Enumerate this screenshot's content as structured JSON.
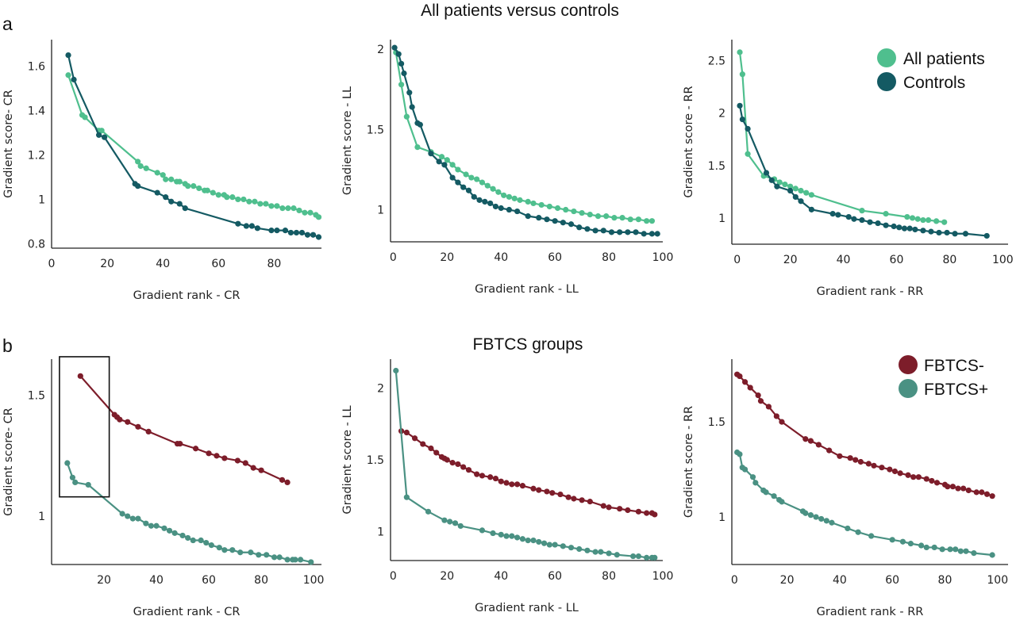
{
  "panels": {
    "a": {
      "label": "a",
      "title": "All patients versus controls"
    },
    "b": {
      "label": "b",
      "title": "FBTCS groups"
    }
  },
  "legends": {
    "a": [
      {
        "name": "All patients",
        "color": "#4fbf8e"
      },
      {
        "name": "Controls",
        "color": "#145a63"
      }
    ],
    "b": [
      {
        "name": "FBTCS-",
        "color": "#7d1d2a"
      },
      {
        "name": "FBTCS+",
        "color": "#4a9183"
      }
    ]
  },
  "chart_data": [
    {
      "type": "line",
      "panel": "a",
      "xlabel": "Gradient rank - CR",
      "ylabel": "Gradient score- CR",
      "xlim": [
        0,
        97
      ],
      "ylim": [
        0.78,
        1.72
      ],
      "xticks": [
        0,
        20,
        40,
        60,
        80
      ],
      "yticks": [
        0.8,
        1,
        1.2,
        1.4,
        1.6
      ],
      "yticklabels": [
        "0.8",
        "1",
        "1.2",
        "1.4",
        "1.6"
      ],
      "series": [
        {
          "name": "All patients",
          "color": "#4fbf8e",
          "x": [
            6,
            11,
            12,
            17,
            18,
            31,
            32,
            34,
            38,
            40,
            41,
            43,
            45,
            46,
            48,
            49,
            51,
            53,
            55,
            56,
            58,
            60,
            62,
            63,
            65,
            67,
            69,
            71,
            73,
            75,
            77,
            79,
            81,
            83,
            85,
            87,
            89,
            91,
            93,
            95,
            96
          ],
          "y": [
            1.56,
            1.38,
            1.37,
            1.31,
            1.31,
            1.17,
            1.15,
            1.14,
            1.12,
            1.11,
            1.09,
            1.09,
            1.08,
            1.08,
            1.07,
            1.06,
            1.06,
            1.05,
            1.04,
            1.04,
            1.03,
            1.02,
            1.02,
            1.01,
            1.01,
            1.0,
            1.0,
            0.99,
            0.99,
            0.98,
            0.98,
            0.97,
            0.97,
            0.96,
            0.96,
            0.96,
            0.95,
            0.94,
            0.94,
            0.93,
            0.92
          ]
        },
        {
          "name": "Controls",
          "color": "#145a63",
          "x": [
            6,
            8,
            17,
            19,
            30,
            31,
            38,
            41,
            43,
            46,
            48,
            67,
            70,
            72,
            74,
            79,
            81,
            84,
            86,
            88,
            90,
            92,
            94,
            96
          ],
          "y": [
            1.65,
            1.54,
            1.29,
            1.28,
            1.07,
            1.06,
            1.03,
            1.01,
            0.99,
            0.98,
            0.96,
            0.89,
            0.88,
            0.88,
            0.87,
            0.86,
            0.86,
            0.86,
            0.85,
            0.85,
            0.85,
            0.84,
            0.84,
            0.83
          ]
        }
      ]
    },
    {
      "type": "line",
      "panel": "a",
      "xlabel": "Gradient rank - LL",
      "ylabel": "Gradient score - LL",
      "xlim": [
        -1,
        100
      ],
      "ylim": [
        0.8,
        2.06
      ],
      "xticks": [
        0,
        20,
        40,
        60,
        80,
        100
      ],
      "yticks": [
        1,
        1.5,
        2
      ],
      "yticklabels": [
        "1",
        "1.5",
        "2"
      ],
      "series": [
        {
          "name": "All patients",
          "color": "#4fbf8e",
          "x": [
            1,
            3,
            5,
            9,
            14,
            18,
            20,
            22,
            24,
            27,
            29,
            31,
            33,
            35,
            37,
            39,
            41,
            43,
            45,
            47,
            50,
            52,
            55,
            58,
            61,
            64,
            67,
            70,
            73,
            76,
            79,
            82,
            85,
            88,
            91,
            94,
            96
          ],
          "y": [
            1.98,
            1.78,
            1.58,
            1.39,
            1.36,
            1.33,
            1.31,
            1.28,
            1.25,
            1.22,
            1.2,
            1.19,
            1.17,
            1.15,
            1.13,
            1.11,
            1.09,
            1.08,
            1.07,
            1.06,
            1.05,
            1.04,
            1.03,
            1.02,
            1.01,
            1.0,
            0.99,
            0.98,
            0.97,
            0.96,
            0.96,
            0.95,
            0.95,
            0.94,
            0.94,
            0.93,
            0.93
          ]
        },
        {
          "name": "Controls",
          "color": "#145a63",
          "x": [
            0.5,
            2,
            3,
            4,
            6,
            7,
            9,
            10,
            14,
            17,
            19,
            22,
            24,
            26,
            28,
            30,
            32,
            34,
            36,
            38,
            40,
            43,
            46,
            50,
            54,
            57,
            60,
            63,
            66,
            69,
            72,
            75,
            78,
            81,
            84,
            87,
            90,
            93,
            96,
            98
          ],
          "y": [
            2.01,
            1.97,
            1.91,
            1.85,
            1.73,
            1.64,
            1.54,
            1.53,
            1.35,
            1.3,
            1.28,
            1.2,
            1.17,
            1.14,
            1.12,
            1.08,
            1.06,
            1.05,
            1.04,
            1.02,
            1.01,
            1.0,
            0.99,
            0.96,
            0.95,
            0.94,
            0.93,
            0.92,
            0.91,
            0.89,
            0.88,
            0.87,
            0.87,
            0.86,
            0.86,
            0.86,
            0.86,
            0.85,
            0.85,
            0.85
          ]
        }
      ]
    },
    {
      "type": "line",
      "panel": "a",
      "xlabel": "Gradient rank - RR",
      "ylabel": "Gradient score - RR",
      "xlim": [
        -2,
        102
      ],
      "ylim": [
        0.75,
        2.7
      ],
      "xticks": [
        0,
        20,
        40,
        60,
        80,
        100
      ],
      "yticks": [
        1,
        1.5,
        2,
        2.5
      ],
      "yticklabels": [
        "1",
        "1.5",
        "2",
        "2.5"
      ],
      "series": [
        {
          "name": "All patients",
          "color": "#4fbf8e",
          "x": [
            1,
            2,
            4,
            10,
            14,
            16,
            18,
            20,
            22,
            24,
            26,
            28,
            47,
            56,
            64,
            66,
            68,
            70,
            72,
            75,
            78
          ],
          "y": [
            2.58,
            2.37,
            1.61,
            1.4,
            1.37,
            1.34,
            1.32,
            1.3,
            1.28,
            1.26,
            1.24,
            1.22,
            1.07,
            1.04,
            1.01,
            1.0,
            0.99,
            0.98,
            0.98,
            0.97,
            0.96
          ]
        },
        {
          "name": "Controls",
          "color": "#145a63",
          "x": [
            1,
            2,
            4,
            11,
            13,
            15,
            20,
            22,
            24,
            28,
            36,
            38,
            42,
            44,
            47,
            50,
            53,
            56,
            59,
            61,
            63,
            65,
            67,
            70,
            73,
            76,
            79,
            82,
            86,
            94
          ],
          "y": [
            2.07,
            1.94,
            1.85,
            1.43,
            1.36,
            1.3,
            1.26,
            1.2,
            1.16,
            1.08,
            1.04,
            1.03,
            1.01,
            0.99,
            0.98,
            0.96,
            0.95,
            0.93,
            0.92,
            0.91,
            0.9,
            0.9,
            0.89,
            0.88,
            0.87,
            0.86,
            0.86,
            0.85,
            0.85,
            0.83
          ]
        }
      ]
    },
    {
      "type": "line",
      "panel": "b",
      "xlabel": "Gradient rank - CR",
      "ylabel": "Gradient score- CR",
      "xlim": [
        0,
        103
      ],
      "ylim": [
        0.8,
        1.65
      ],
      "xticks": [
        20,
        40,
        60,
        80,
        100
      ],
      "yticks": [
        1,
        1.5
      ],
      "yticklabels": [
        "1",
        "1.5"
      ],
      "annotations": [
        {
          "type": "rectangle",
          "x": [
            3,
            22
          ],
          "y": [
            1.08,
            1.66
          ]
        }
      ],
      "series": [
        {
          "name": "FBTCS-",
          "color": "#7d1d2a",
          "x": [
            11,
            24,
            25,
            26,
            29,
            33,
            37,
            48,
            49,
            55,
            60,
            63,
            66,
            71,
            74,
            77,
            80,
            88,
            90
          ],
          "y": [
            1.58,
            1.42,
            1.41,
            1.4,
            1.39,
            1.37,
            1.35,
            1.3,
            1.3,
            1.28,
            1.26,
            1.25,
            1.24,
            1.23,
            1.22,
            1.2,
            1.19,
            1.15,
            1.14
          ]
        },
        {
          "name": "FBTCS+",
          "color": "#4a9183",
          "x": [
            6,
            8,
            9,
            14,
            27,
            29,
            31,
            33,
            36,
            38,
            40,
            43,
            45,
            47,
            50,
            52,
            54,
            57,
            59,
            61,
            64,
            66,
            69,
            72,
            76,
            79,
            82,
            85,
            87,
            90,
            92,
            93,
            95,
            99
          ],
          "y": [
            1.22,
            1.16,
            1.14,
            1.13,
            1.01,
            1.0,
            0.99,
            0.99,
            0.97,
            0.96,
            0.96,
            0.95,
            0.94,
            0.93,
            0.92,
            0.91,
            0.9,
            0.9,
            0.89,
            0.88,
            0.87,
            0.86,
            0.86,
            0.85,
            0.85,
            0.84,
            0.84,
            0.83,
            0.83,
            0.82,
            0.82,
            0.82,
            0.82,
            0.81
          ]
        }
      ]
    },
    {
      "type": "line",
      "panel": "b",
      "xlabel": "Gradient rank - LL",
      "ylabel": "Gradient score - LL",
      "xlim": [
        -1,
        100
      ],
      "ylim": [
        0.8,
        2.2
      ],
      "xticks": [
        0,
        20,
        40,
        60,
        80,
        100
      ],
      "yticks": [
        1,
        1.5,
        2
      ],
      "yticklabels": [
        "1",
        "1.5",
        "2"
      ],
      "series": [
        {
          "name": "FBTCS-",
          "color": "#7d1d2a",
          "x": [
            3,
            5,
            8,
            11,
            14,
            16,
            18,
            19,
            20,
            22,
            24,
            26,
            28,
            31,
            33,
            36,
            38,
            40,
            42,
            44,
            46,
            48,
            52,
            54,
            57,
            59,
            62,
            65,
            67,
            70,
            73,
            78,
            80,
            84,
            87,
            91,
            94,
            96,
            97
          ],
          "y": [
            1.7,
            1.69,
            1.65,
            1.61,
            1.58,
            1.55,
            1.52,
            1.51,
            1.5,
            1.48,
            1.47,
            1.45,
            1.43,
            1.4,
            1.39,
            1.38,
            1.37,
            1.35,
            1.34,
            1.33,
            1.33,
            1.32,
            1.3,
            1.29,
            1.28,
            1.27,
            1.26,
            1.24,
            1.23,
            1.22,
            1.21,
            1.18,
            1.17,
            1.16,
            1.15,
            1.14,
            1.13,
            1.13,
            1.12
          ]
        },
        {
          "name": "FBTCS+",
          "color": "#4a9183",
          "x": [
            1,
            5,
            13,
            19,
            21,
            23,
            25,
            33,
            37,
            40,
            42,
            44,
            46,
            48,
            50,
            52,
            54,
            56,
            58,
            60,
            63,
            66,
            69,
            72,
            75,
            77,
            80,
            83,
            89,
            91,
            94,
            96,
            97
          ],
          "y": [
            2.12,
            1.24,
            1.14,
            1.08,
            1.07,
            1.06,
            1.04,
            1.01,
            0.99,
            0.98,
            0.97,
            0.97,
            0.96,
            0.95,
            0.94,
            0.94,
            0.93,
            0.92,
            0.91,
            0.91,
            0.9,
            0.89,
            0.88,
            0.87,
            0.86,
            0.86,
            0.85,
            0.84,
            0.83,
            0.83,
            0.82,
            0.82,
            0.82
          ]
        }
      ]
    },
    {
      "type": "line",
      "panel": "b",
      "xlabel": "Gradient rank - RR",
      "ylabel": "Gradient score - RR",
      "xlim": [
        -1,
        104
      ],
      "ylim": [
        0.75,
        1.83
      ],
      "xticks": [
        0,
        20,
        40,
        60,
        80,
        100
      ],
      "yticks": [
        1,
        1.5
      ],
      "yticklabels": [
        "1",
        "1.5"
      ],
      "series": [
        {
          "name": "FBTCS-",
          "color": "#7d1d2a",
          "x": [
            1,
            2,
            4,
            6,
            9,
            10,
            13,
            16,
            18,
            27,
            29,
            32,
            36,
            40,
            44,
            46,
            48,
            51,
            53,
            56,
            59,
            61,
            63,
            66,
            68,
            70,
            73,
            75,
            77,
            80,
            81,
            83,
            85,
            87,
            89,
            92,
            94,
            96,
            98
          ],
          "y": [
            1.75,
            1.74,
            1.71,
            1.68,
            1.64,
            1.61,
            1.58,
            1.53,
            1.5,
            1.41,
            1.4,
            1.38,
            1.35,
            1.32,
            1.31,
            1.3,
            1.29,
            1.28,
            1.27,
            1.26,
            1.25,
            1.24,
            1.23,
            1.22,
            1.21,
            1.21,
            1.2,
            1.19,
            1.18,
            1.17,
            1.16,
            1.16,
            1.15,
            1.15,
            1.14,
            1.13,
            1.13,
            1.12,
            1.11
          ]
        },
        {
          "name": "FBTCS+",
          "color": "#4a9183",
          "x": [
            1,
            2,
            3,
            4,
            7,
            8,
            11,
            12,
            15,
            17,
            18,
            26,
            27,
            29,
            31,
            33,
            35,
            37,
            43,
            47,
            52,
            60,
            64,
            67,
            71,
            73,
            76,
            79,
            82,
            84,
            86,
            88,
            91,
            98
          ],
          "y": [
            1.34,
            1.33,
            1.26,
            1.25,
            1.21,
            1.18,
            1.14,
            1.13,
            1.11,
            1.09,
            1.08,
            1.03,
            1.02,
            1.01,
            1.0,
            0.99,
            0.98,
            0.97,
            0.94,
            0.92,
            0.9,
            0.88,
            0.87,
            0.86,
            0.85,
            0.84,
            0.84,
            0.83,
            0.83,
            0.83,
            0.82,
            0.82,
            0.81,
            0.8
          ]
        }
      ]
    }
  ]
}
